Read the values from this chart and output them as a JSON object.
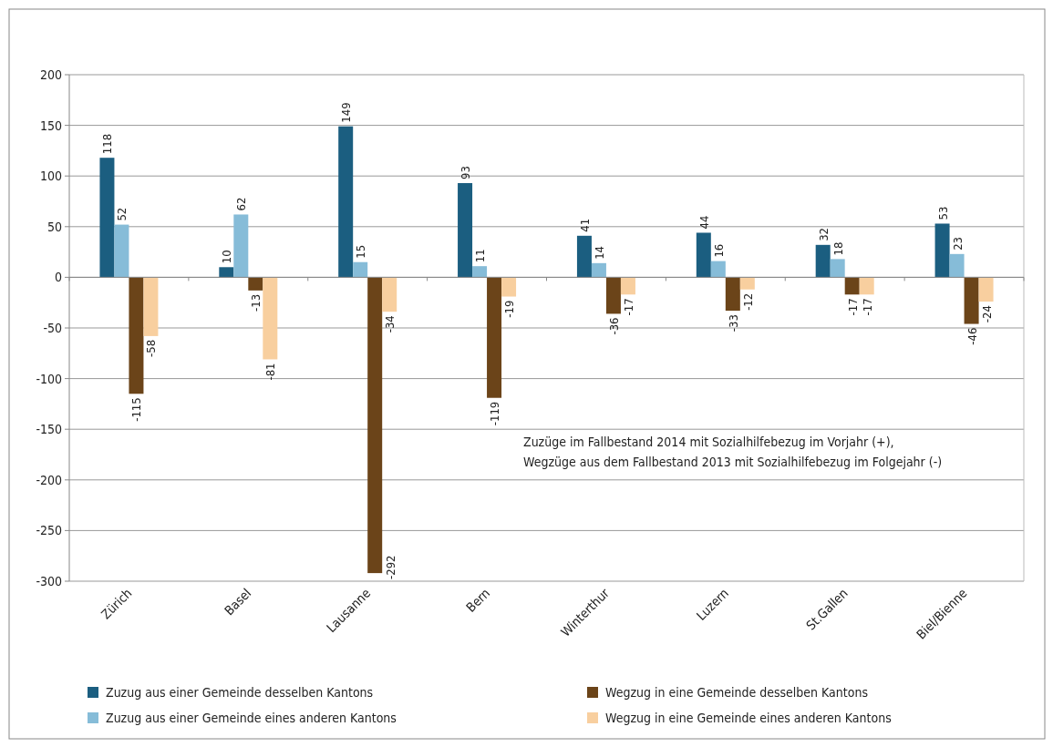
{
  "chart_data": {
    "type": "bar",
    "categories": [
      "Zürich",
      "Basel",
      "Lausanne",
      "Bern",
      "Winterthur",
      "Luzern",
      "St.Gallen",
      "Biel/Bienne"
    ],
    "series": [
      {
        "name": "Zuzug aus einer Gemeinde desselben Kantons",
        "color": "#1b5e80",
        "values": [
          118,
          10,
          149,
          93,
          41,
          44,
          32,
          53
        ]
      },
      {
        "name": "Zuzug aus einer Gemeinde eines anderen Kantons",
        "color": "#86bcd8",
        "values": [
          52,
          62,
          15,
          11,
          14,
          16,
          18,
          23
        ]
      },
      {
        "name": "Wegzug in eine Gemeinde desselben Kantons",
        "color": "#6b4419",
        "values": [
          -115,
          -13,
          -292,
          -119,
          -36,
          -33,
          -17,
          -46
        ]
      },
      {
        "name": "Wegzug in eine Gemeinde eines anderen Kantons",
        "color": "#f8cf9f",
        "values": [
          -58,
          -81,
          -34,
          -19,
          -17,
          -12,
          -17,
          -24
        ]
      }
    ],
    "ylim": [
      -300,
      200
    ],
    "yticks": [
      -300,
      -250,
      -200,
      -150,
      -100,
      -50,
      0,
      50,
      100,
      150,
      200
    ],
    "grid": "y",
    "legend": "bottom",
    "data_labels": true,
    "annotations": [
      "Zuzüge im Fallbestand 2014 mit Sozialhilfebezug im Vorjahr (+),\nWegzüge aus dem Fallbestand 2013 mit Sozialhilfebezug im Folgejahr (-)"
    ]
  }
}
